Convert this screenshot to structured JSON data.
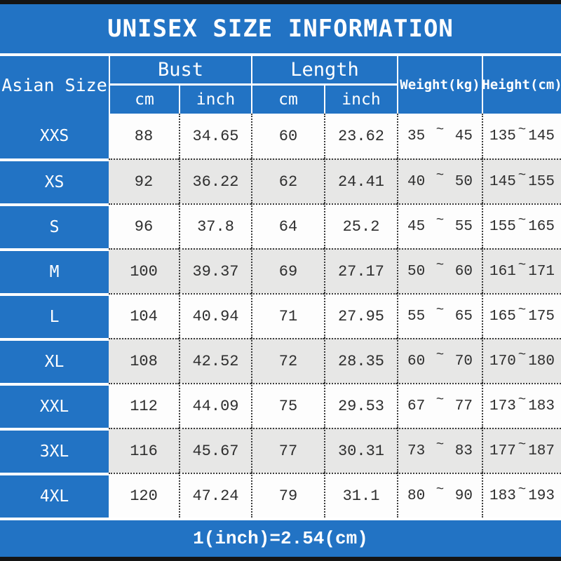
{
  "title": "UNISEX SIZE INFORMATION",
  "footer_note": "1(inch)=2.54(cm)",
  "tilde_char": "~",
  "colors": {
    "blue": "#2273c4",
    "row_white": "#fdfdfd",
    "row_gray": "#e7e7e6",
    "text_dark": "#2e2e2e",
    "text_white": "#ffffff",
    "border_black": "#141414"
  },
  "header": {
    "size_col": "Asian Size",
    "bust": "Bust",
    "length": "Length",
    "weight": "Weight(kg)",
    "height": "Height(cm)",
    "cm": "cm",
    "inch": "inch"
  },
  "rows": [
    {
      "size": "XXS",
      "bust_cm": "88",
      "bust_in": "34.65",
      "len_cm": "60",
      "len_in": "23.62",
      "w_min": "35",
      "w_max": "45",
      "h_min": "135",
      "h_max": "145"
    },
    {
      "size": "XS",
      "bust_cm": "92",
      "bust_in": "36.22",
      "len_cm": "62",
      "len_in": "24.41",
      "w_min": "40",
      "w_max": "50",
      "h_min": "145",
      "h_max": "155"
    },
    {
      "size": "S",
      "bust_cm": "96",
      "bust_in": "37.8",
      "len_cm": "64",
      "len_in": "25.2",
      "w_min": "45",
      "w_max": "55",
      "h_min": "155",
      "h_max": "165"
    },
    {
      "size": "M",
      "bust_cm": "100",
      "bust_in": "39.37",
      "len_cm": "69",
      "len_in": "27.17",
      "w_min": "50",
      "w_max": "60",
      "h_min": "161",
      "h_max": "171"
    },
    {
      "size": "L",
      "bust_cm": "104",
      "bust_in": "40.94",
      "len_cm": "71",
      "len_in": "27.95",
      "w_min": "55",
      "w_max": "65",
      "h_min": "165",
      "h_max": "175"
    },
    {
      "size": "XL",
      "bust_cm": "108",
      "bust_in": "42.52",
      "len_cm": "72",
      "len_in": "28.35",
      "w_min": "60",
      "w_max": "70",
      "h_min": "170",
      "h_max": "180"
    },
    {
      "size": "XXL",
      "bust_cm": "112",
      "bust_in": "44.09",
      "len_cm": "75",
      "len_in": "29.53",
      "w_min": "67",
      "w_max": "77",
      "h_min": "173",
      "h_max": "183"
    },
    {
      "size": "3XL",
      "bust_cm": "116",
      "bust_in": "45.67",
      "len_cm": "77",
      "len_in": "30.31",
      "w_min": "73",
      "w_max": "83",
      "h_min": "177",
      "h_max": "187"
    },
    {
      "size": "4XL",
      "bust_cm": "120",
      "bust_in": "47.24",
      "len_cm": "79",
      "len_in": "31.1",
      "w_min": "80",
      "w_max": "90",
      "h_min": "183",
      "h_max": "193"
    }
  ],
  "chart_data": {
    "type": "table",
    "title": "UNISEX SIZE INFORMATION",
    "columns": [
      "Asian Size",
      "Bust cm",
      "Bust inch",
      "Length cm",
      "Length inch",
      "Weight(kg)",
      "Height(cm)"
    ],
    "rows": [
      [
        "XXS",
        "88",
        "34.65",
        "60",
        "23.62",
        "35~45",
        "135~145"
      ],
      [
        "XS",
        "92",
        "36.22",
        "62",
        "24.41",
        "40~50",
        "145~155"
      ],
      [
        "S",
        "96",
        "37.8",
        "64",
        "25.2",
        "45~55",
        "155~165"
      ],
      [
        "M",
        "100",
        "39.37",
        "69",
        "27.17",
        "50~60",
        "161~171"
      ],
      [
        "L",
        "104",
        "40.94",
        "71",
        "27.95",
        "55~65",
        "165~175"
      ],
      [
        "XL",
        "108",
        "42.52",
        "72",
        "28.35",
        "60~70",
        "170~180"
      ],
      [
        "XXL",
        "112",
        "44.09",
        "75",
        "29.53",
        "67~77",
        "173~183"
      ],
      [
        "3XL",
        "116",
        "45.67",
        "77",
        "30.31",
        "73~83",
        "177~187"
      ],
      [
        "4XL",
        "120",
        "47.24",
        "79",
        "31.1",
        "80~90",
        "183~193"
      ]
    ],
    "annotations": [
      "1(inch)=2.54(cm)"
    ]
  }
}
